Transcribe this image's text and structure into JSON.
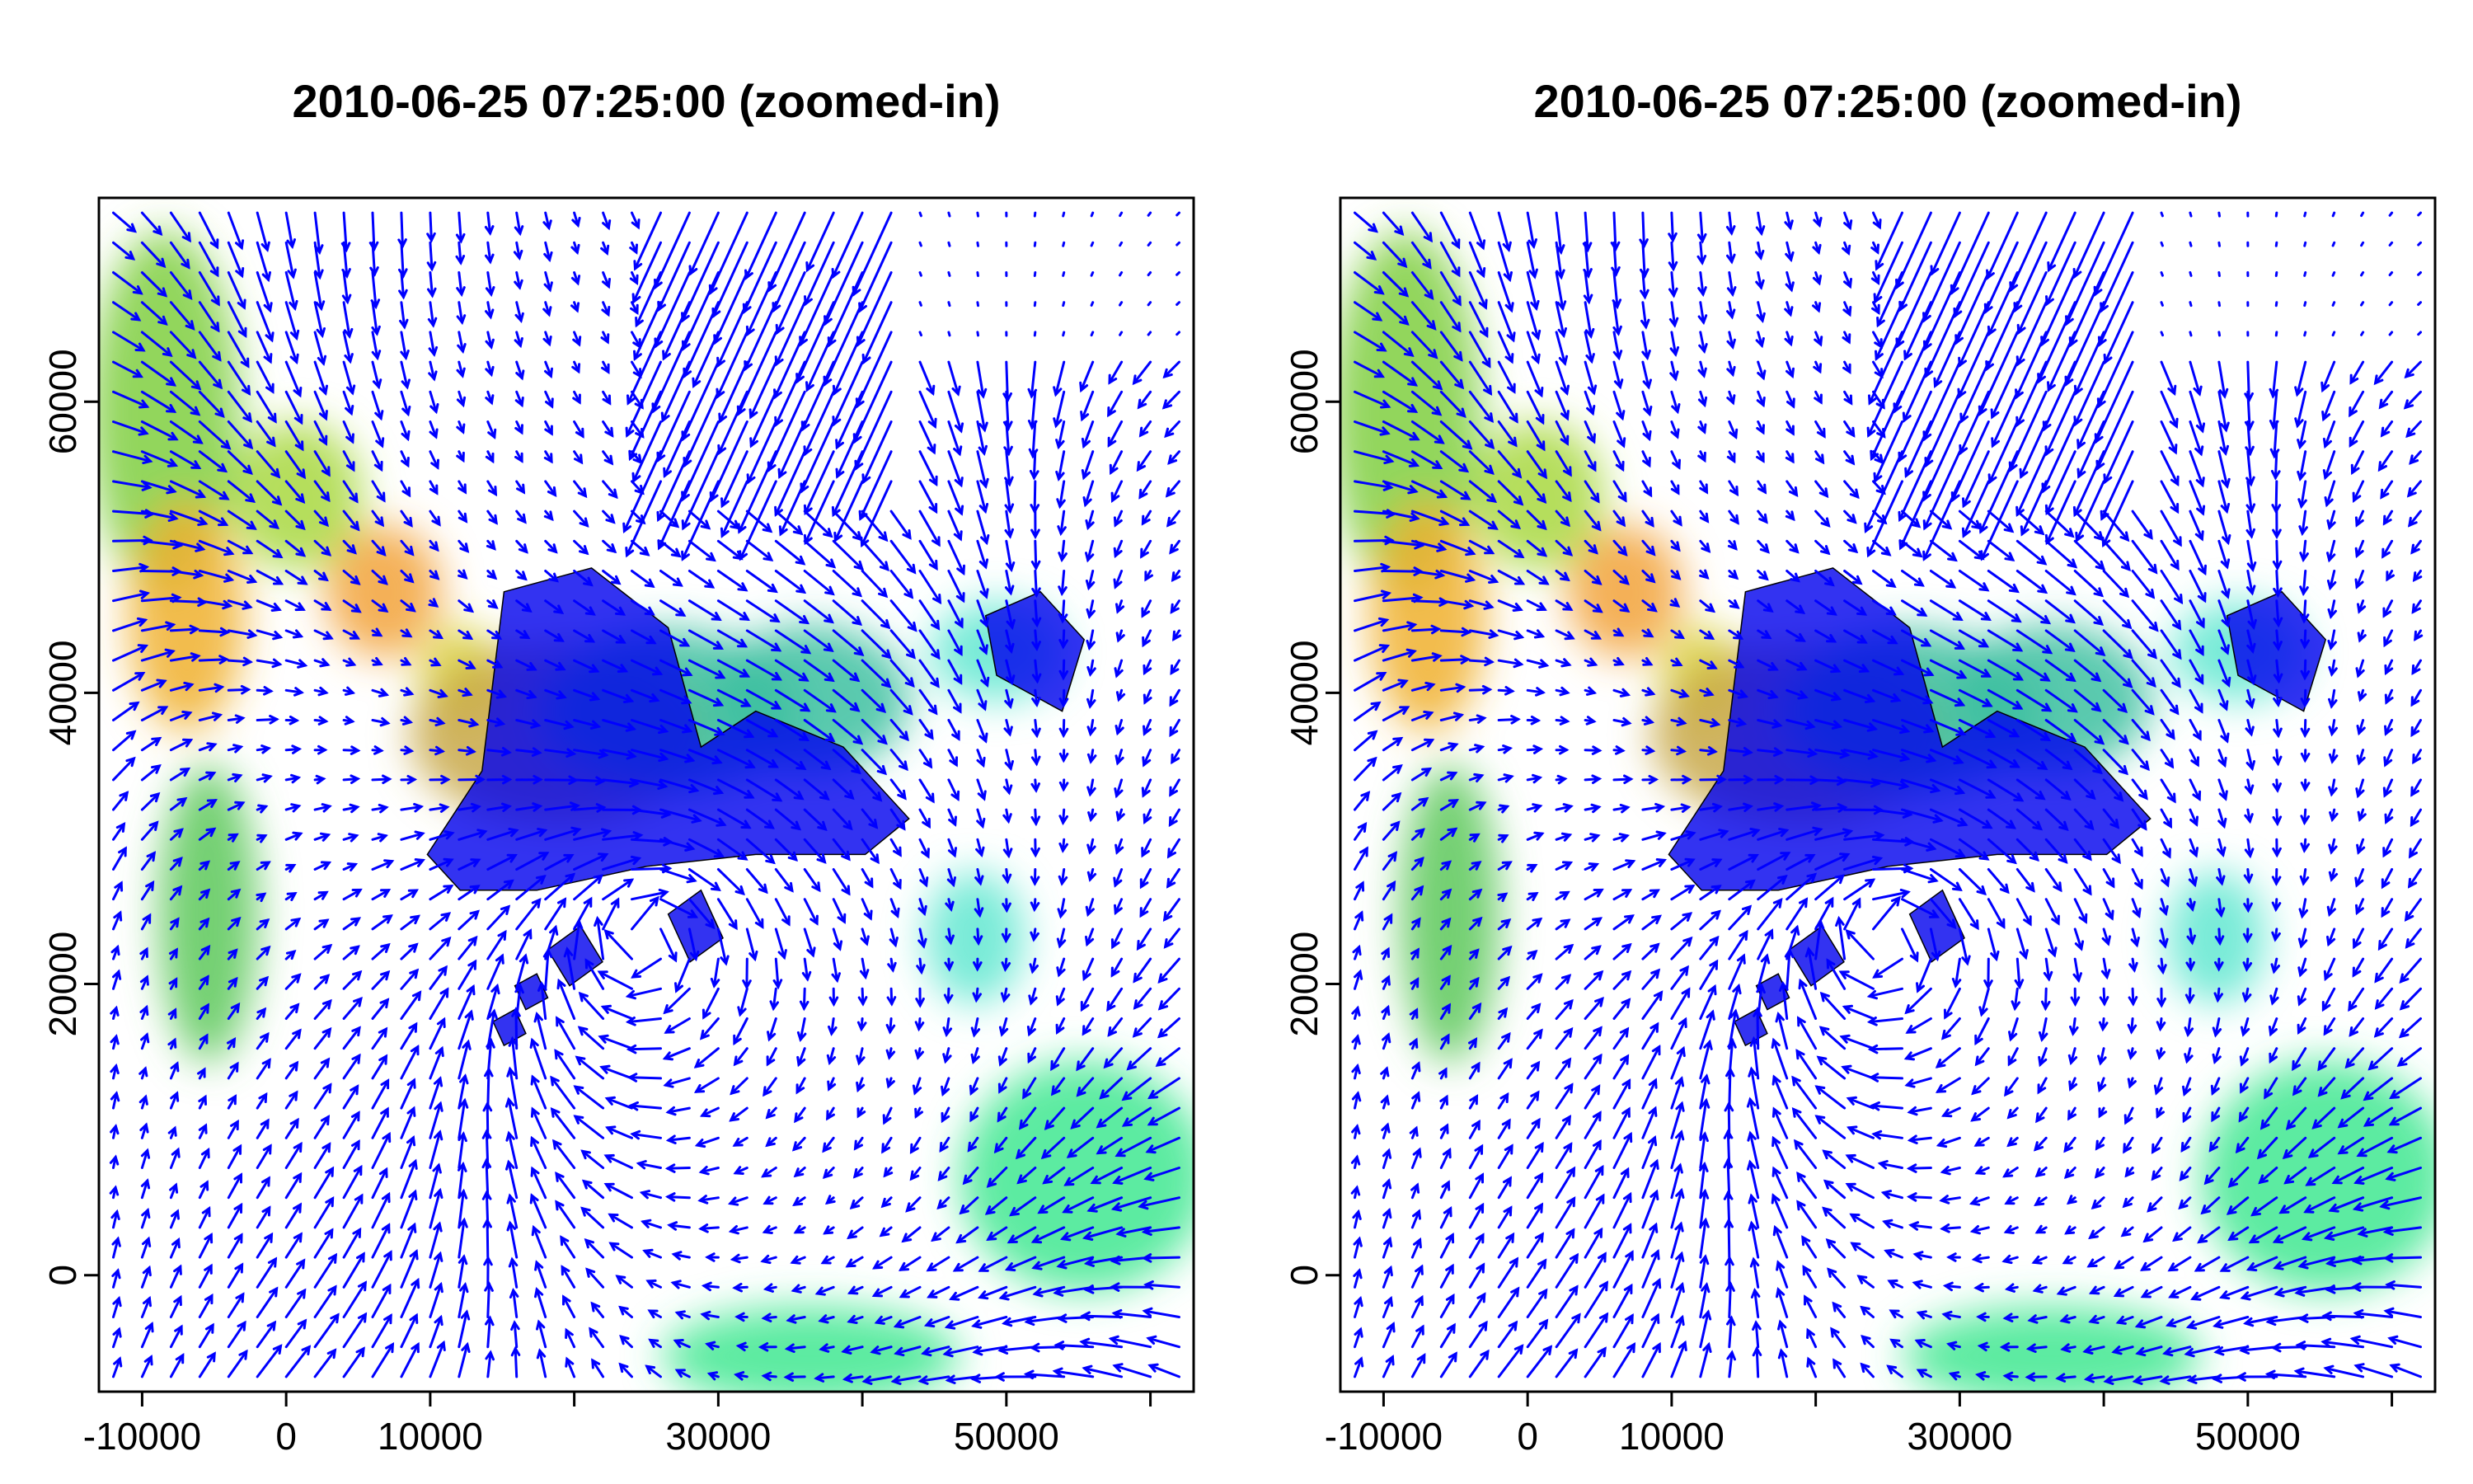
{
  "chart_data": [
    {
      "type": "heatmap",
      "title": "2010-06-25 07:25:00 (zoomed-in)",
      "xlabel": "",
      "ylabel": "",
      "xlim": [
        -13000,
        63000
      ],
      "ylim": [
        -8000,
        74000
      ],
      "xticks": [
        -10000,
        0,
        10000,
        30000,
        50000
      ],
      "xtick_labels": [
        "-10000",
        "0",
        "10000",
        "30000",
        "50000"
      ],
      "yticks": [
        0,
        20000,
        40000,
        60000
      ],
      "ytick_labels": [
        "0",
        "20000",
        "40000",
        "60000"
      ],
      "overlay": "wind vector arrows (blue)",
      "grid": false,
      "colors": {
        "arrows": "#0000ff",
        "coast": "#0000ee",
        "frame": "#000000"
      }
    },
    {
      "type": "heatmap",
      "title": "2010-06-25 07:25:00 (zoomed-in)",
      "xlabel": "",
      "ylabel": "",
      "xlim": [
        -13000,
        63000
      ],
      "ylim": [
        -8000,
        74000
      ],
      "xticks": [
        -10000,
        0,
        10000,
        30000,
        50000
      ],
      "xtick_labels": [
        "-10000",
        "0",
        "10000",
        "30000",
        "50000"
      ],
      "yticks": [
        0,
        20000,
        40000,
        60000
      ],
      "ytick_labels": [
        "0",
        "20000",
        "40000",
        "60000"
      ],
      "overlay": "wind vector arrows (blue)",
      "grid": false,
      "colors": {
        "arrows": "#0000ff",
        "coast": "#0000ee",
        "frame": "#000000"
      }
    }
  ]
}
